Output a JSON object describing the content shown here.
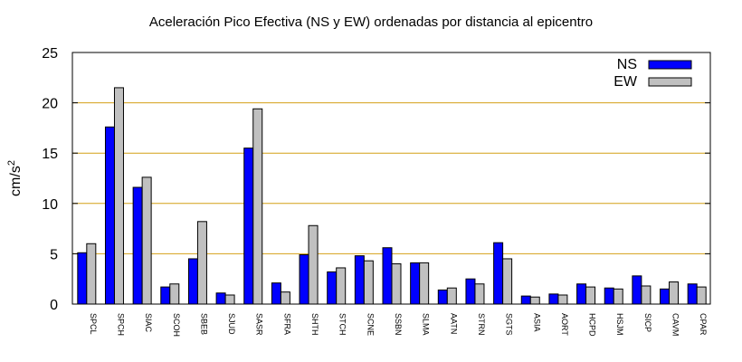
{
  "chart_data": {
    "type": "bar",
    "title": "Aceleración Pico Efectiva (NS y EW) ordenadas por distancia al epicentro",
    "xlabel": "",
    "ylabel": "cm/s",
    "ylabel_superscript": "2",
    "ylim": [
      0,
      25
    ],
    "yticks": [
      0,
      5,
      10,
      15,
      20,
      25
    ],
    "grid": "horizontal",
    "grid_color": "#d4a017",
    "legend_position": "top-right",
    "categories": [
      "SPCL",
      "SPCH",
      "SIAC",
      "SCOH",
      "SBEB",
      "SJUD",
      "SASR",
      "SFRA",
      "SHTH",
      "STCH",
      "SCNE",
      "SSBN",
      "SLMA",
      "AATN",
      "STRN",
      "SGTS",
      "ASIA",
      "AORT",
      "HCPD",
      "HSJM",
      "SICP",
      "CAVM",
      "CPAR"
    ],
    "series": [
      {
        "name": "NS",
        "color": "#0000ff",
        "values": [
          5.1,
          17.6,
          11.6,
          1.7,
          4.5,
          1.1,
          15.5,
          2.1,
          4.9,
          3.2,
          4.8,
          5.6,
          4.1,
          1.4,
          2.5,
          6.1,
          0.8,
          1.0,
          2.0,
          1.6,
          2.8,
          1.5,
          2.0
        ]
      },
      {
        "name": "EW",
        "color": "#c0c0c0",
        "values": [
          6.0,
          21.5,
          12.6,
          2.0,
          8.2,
          0.9,
          19.4,
          1.2,
          7.8,
          3.6,
          4.3,
          4.0,
          4.1,
          1.6,
          2.0,
          4.5,
          0.7,
          0.9,
          1.7,
          1.5,
          1.8,
          2.2,
          1.7
        ]
      }
    ]
  }
}
